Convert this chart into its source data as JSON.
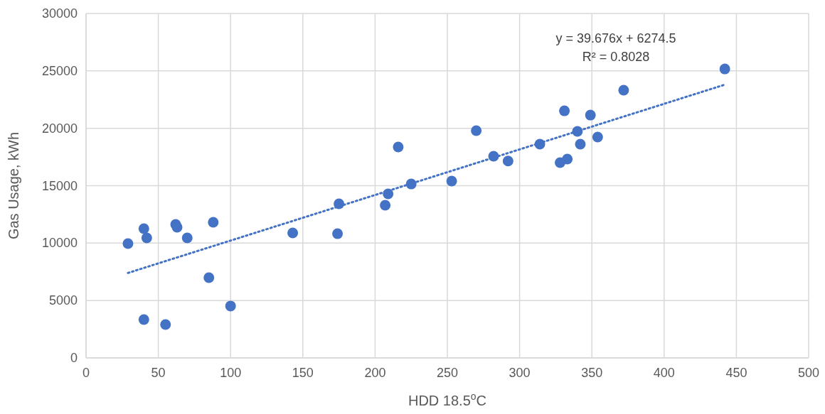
{
  "chart_data": {
    "type": "scatter",
    "xlabel": "HDD 18.5$^{o}$C",
    "ylabel": "Gas Usage, kWh",
    "xlim": [
      0,
      500
    ],
    "xticks": [
      0,
      50,
      100,
      150,
      200,
      250,
      300,
      350,
      400,
      450,
      500
    ],
    "ylim": [
      0,
      30000
    ],
    "yticks": [
      0,
      5000,
      10000,
      15000,
      20000,
      25000,
      30000
    ],
    "grid": true,
    "annotations": [
      "y = 39.676x + 6274.5",
      "R² = 0.8028"
    ],
    "series": [
      {
        "color": "#4472c4",
        "marker": "circle",
        "x": [
          29,
          40,
          42,
          40,
          55,
          62,
          63,
          70,
          85,
          88,
          100,
          143,
          175,
          174,
          207,
          209,
          216,
          225,
          253,
          270,
          282,
          292,
          314,
          328,
          331,
          333,
          340,
          342,
          349,
          354,
          372,
          442
        ],
        "values": [
          9960,
          11260,
          10450,
          3340,
          2910,
          11630,
          11380,
          10450,
          6990,
          11810,
          4520,
          10890,
          13420,
          10820,
          13300,
          14290,
          18370,
          15150,
          15400,
          19790,
          17570,
          17150,
          18620,
          17010,
          21520,
          17320,
          19730,
          18620,
          21150,
          19240,
          23320,
          25170
        ]
      },
      {
        "type": "line",
        "color": "#4472c4",
        "marker": "none",
        "line_style": "dotted",
        "x": [
          29,
          442
        ],
        "values": [
          7400,
          23800
        ]
      }
    ]
  }
}
